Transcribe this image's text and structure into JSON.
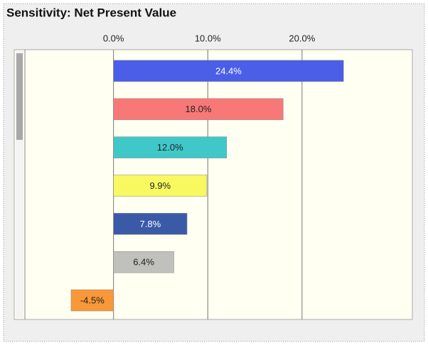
{
  "chart_data": {
    "type": "hbar",
    "title": "Sensitivity: Net Present Value",
    "values": [
      24.4,
      18.0,
      12.0,
      9.9,
      7.8,
      6.4,
      -4.5
    ],
    "value_labels": [
      "24.4%",
      "18.0%",
      "12.0%",
      "9.9%",
      "7.8%",
      "6.4%",
      "-4.5%"
    ],
    "colors": [
      "#4a5ee8",
      "#f87878",
      "#40c8c8",
      "#f8f860",
      "#3a5aa8",
      "#c0c0bc",
      "#f89838"
    ],
    "xlim": [
      -9.4,
      31.7
    ],
    "xticks": [
      {
        "value": 0,
        "label": "0.0%"
      },
      {
        "value": 10,
        "label": "10.0%"
      },
      {
        "value": 20,
        "label": "20.0%"
      }
    ],
    "grid": true
  }
}
